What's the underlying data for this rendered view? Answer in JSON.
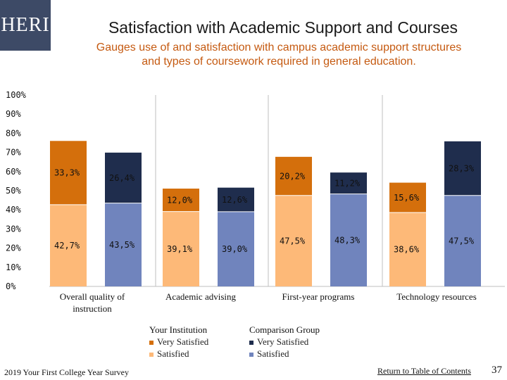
{
  "header": {
    "logo": "HERI",
    "title": "Satisfaction with Academic Support and Courses",
    "subtitle_line1": "Gauges use of and satisfaction with campus academic support structures",
    "subtitle_line2": "and types of coursework required in general education."
  },
  "colors": {
    "inst_very": "#d46f0c",
    "inst_sat": "#fdb978",
    "comp_very": "#1f2d4d",
    "comp_sat": "#7084bd"
  },
  "chart_data": {
    "type": "bar",
    "stacked": true,
    "y_ticks": [
      "0%",
      "10%",
      "20%",
      "30%",
      "40%",
      "50%",
      "60%",
      "70%",
      "80%",
      "90%",
      "100%"
    ],
    "ylim": [
      0,
      100
    ],
    "categories": [
      {
        "label_lines": [
          "Overall quality of",
          "instruction"
        ]
      },
      {
        "label_lines": [
          "Academic advising"
        ]
      },
      {
        "label_lines": [
          "First-year programs"
        ]
      },
      {
        "label_lines": [
          "Technology resources"
        ]
      }
    ],
    "bars": [
      {
        "group": "Your Institution",
        "satisfied": 42.7,
        "very_satisfied": 33.3,
        "satisfied_label": "42,7%",
        "very_label": "33,3%"
      },
      {
        "group": "Comparison Group",
        "satisfied": 43.5,
        "very_satisfied": 26.4,
        "satisfied_label": "43,5%",
        "very_label": "26,4%"
      },
      {
        "group": "Your Institution",
        "satisfied": 39.1,
        "very_satisfied": 12.0,
        "satisfied_label": "39,1%",
        "very_label": "12,0%"
      },
      {
        "group": "Comparison Group",
        "satisfied": 39.0,
        "very_satisfied": 12.6,
        "satisfied_label": "39,0%",
        "very_label": "12,6%"
      },
      {
        "group": "Your Institution",
        "satisfied": 47.5,
        "very_satisfied": 20.2,
        "satisfied_label": "47,5%",
        "very_label": "20,2%"
      },
      {
        "group": "Comparison Group",
        "satisfied": 48.3,
        "very_satisfied": 11.2,
        "satisfied_label": "48,3%",
        "very_label": "11,2%"
      },
      {
        "group": "Your Institution",
        "satisfied": 38.6,
        "very_satisfied": 15.6,
        "satisfied_label": "38,6%",
        "very_label": "15,6%"
      },
      {
        "group": "Comparison Group",
        "satisfied": 47.5,
        "very_satisfied": 28.3,
        "satisfied_label": "47,5%",
        "very_label": "28,3%"
      }
    ]
  },
  "legend": {
    "institution_title": "Your Institution",
    "institution_very": "Very Satisfied",
    "institution_sat": "Satisfied",
    "comparison_title": "Comparison Group",
    "comparison_very": "Very Satisfied",
    "comparison_sat": "Satisfied"
  },
  "footer": {
    "survey": "2019 Your First College Year Survey",
    "link": "Return to Table of Contents",
    "page": "37"
  }
}
